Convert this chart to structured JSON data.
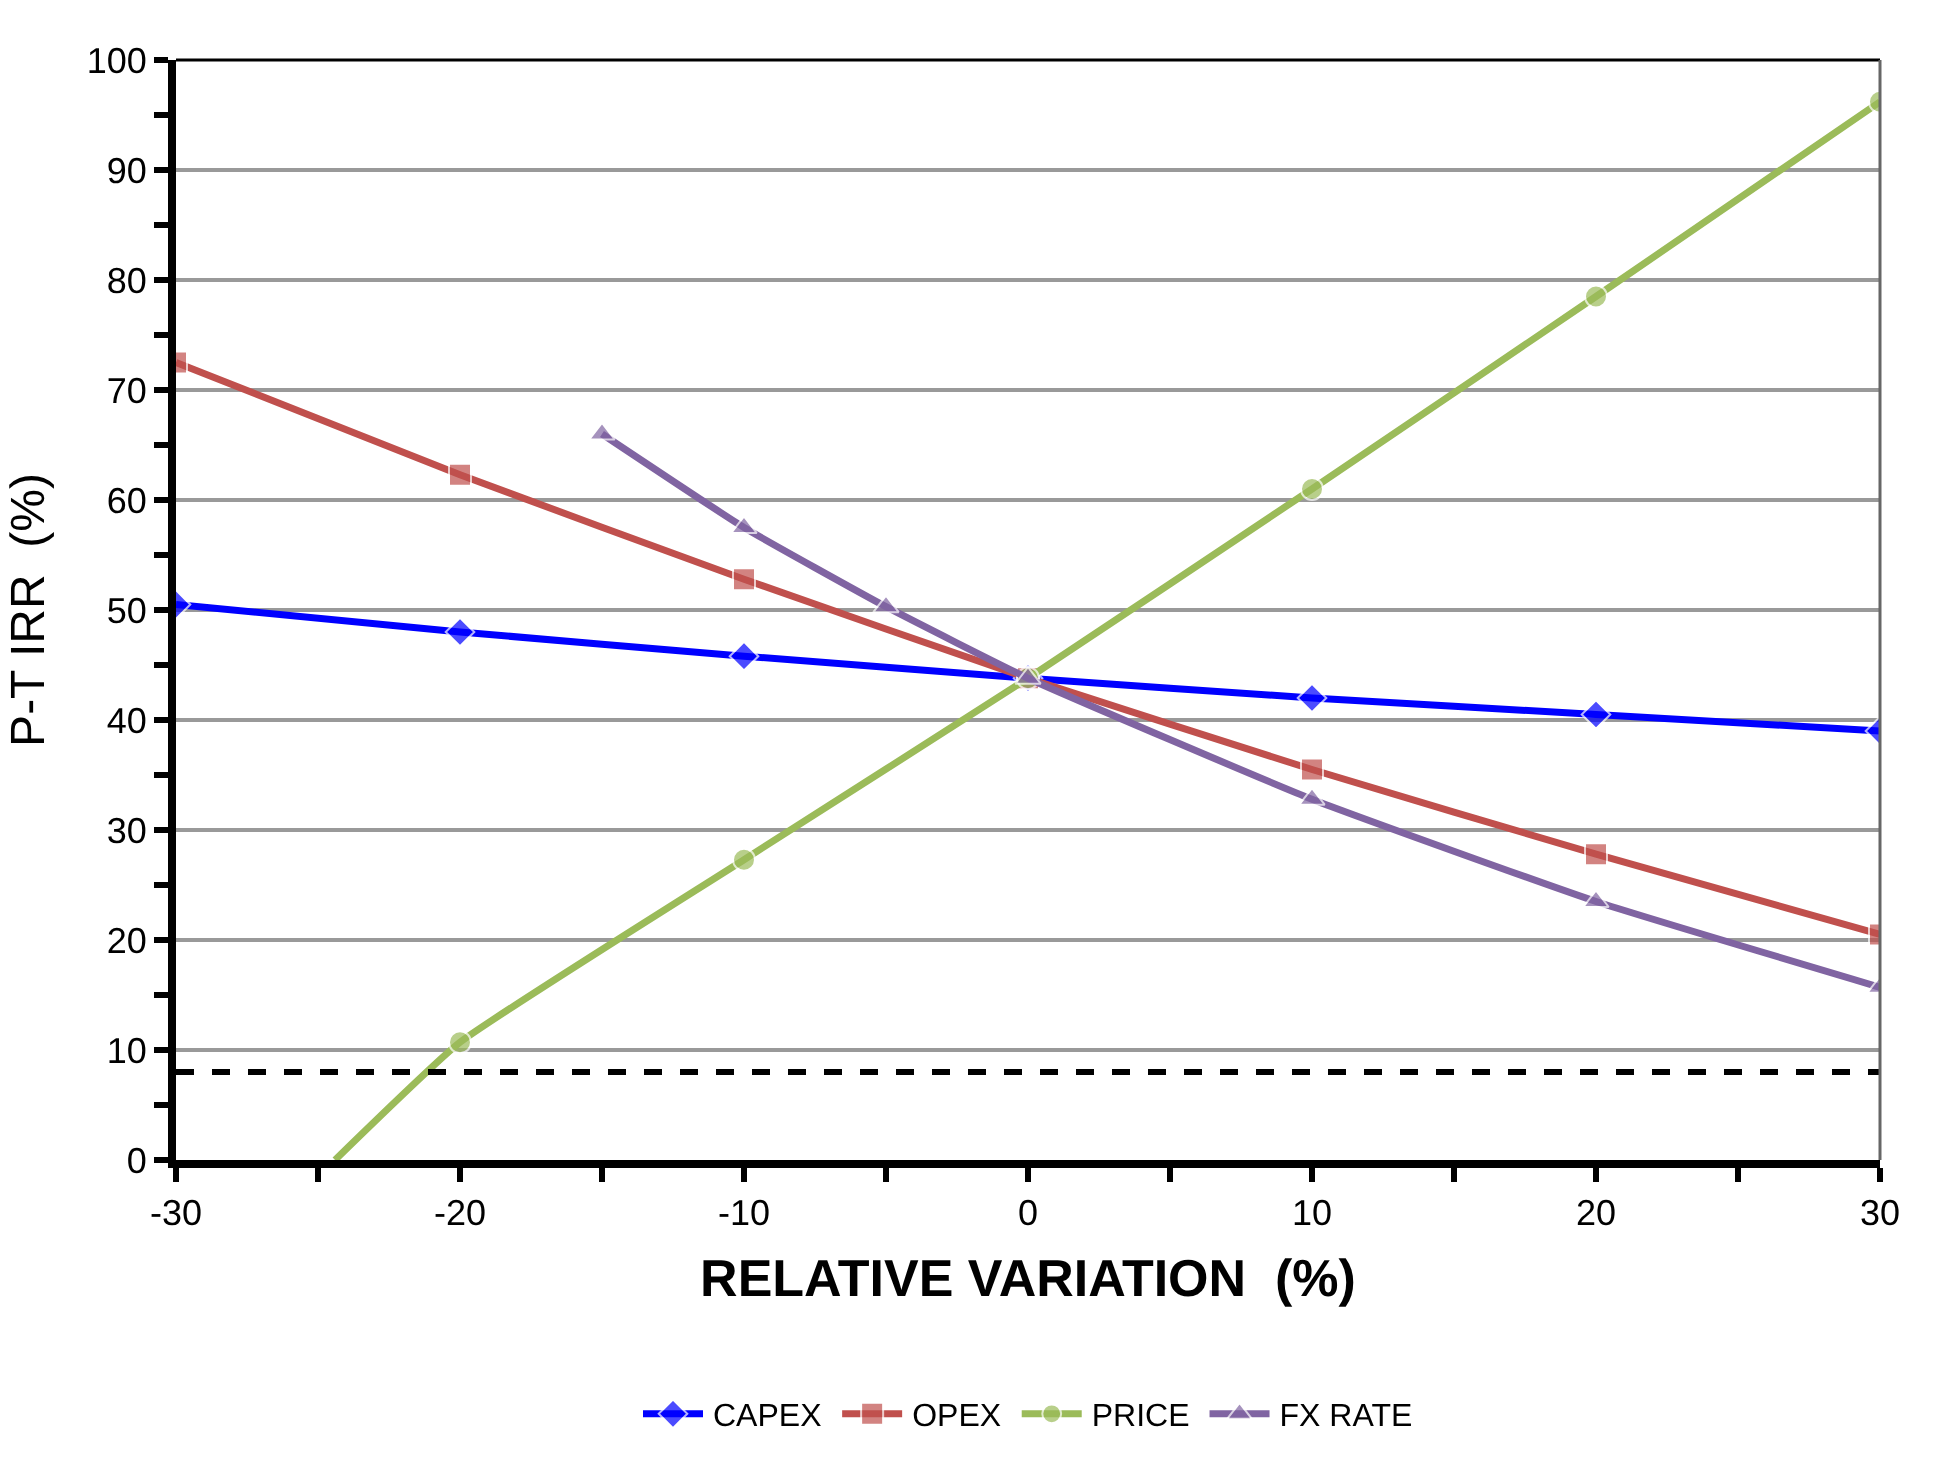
{
  "chart_data": {
    "type": "line",
    "xlabel": "RELATIVE VARIATION  (%)",
    "ylabel": "P-T IRR  (%)",
    "x": [
      -30,
      -20,
      -10,
      0,
      10,
      20,
      30
    ],
    "series": [
      {
        "name": "CAPEX",
        "color": "#0000ff",
        "marker": "diamond",
        "values": [
          50.5,
          48,
          45.8,
          43.8,
          42,
          40.5,
          39
        ]
      },
      {
        "name": "OPEX",
        "color": "#c0504d",
        "marker": "square",
        "values": [
          72.5,
          62.3,
          52.8,
          43.8,
          35.5,
          27.8,
          20.5
        ]
      },
      {
        "name": "PRICE",
        "color": "#9bbb59",
        "marker": "circle",
        "x": [
          -24.4,
          -20,
          -10,
          0,
          10,
          20,
          30
        ],
        "values": [
          0,
          10.7,
          27.3,
          43.8,
          61,
          78.5,
          96.2
        ]
      },
      {
        "name": "FX RATE",
        "color": "#8064a2",
        "marker": "triangle",
        "x": [
          -15,
          -10,
          -5,
          0,
          10,
          20,
          30
        ],
        "values": [
          66,
          57.5,
          50.3,
          43.8,
          32.8,
          23.5,
          15.7
        ]
      }
    ],
    "xlim": [
      -30,
      30
    ],
    "xticks": [
      -30,
      {
        "value": -25,
        "label": null
      },
      -20,
      {
        "value": -15,
        "label": null
      },
      -10,
      {
        "value": -5,
        "label": null
      },
      0,
      {
        "value": 5,
        "label": null
      },
      10,
      {
        "value": 15,
        "label": null
      },
      20,
      {
        "value": 25,
        "label": null
      },
      30
    ],
    "ylim": [
      0,
      100
    ],
    "yticks": [
      0,
      {
        "value": 5,
        "label": null
      },
      10,
      {
        "value": 15,
        "label": null
      },
      20,
      {
        "value": 25,
        "label": null
      },
      30,
      {
        "value": 35,
        "label": null
      },
      40,
      {
        "value": 45,
        "label": null
      },
      50,
      {
        "value": 55,
        "label": null
      },
      60,
      {
        "value": 65,
        "label": null
      },
      70,
      {
        "value": 75,
        "label": null
      },
      80,
      {
        "value": 85,
        "label": null
      },
      90,
      {
        "value": 95,
        "label": null
      },
      100
    ],
    "ref_lines": [
      {
        "axis": "y",
        "value": 8,
        "color": "#000000",
        "line_style": "dashed"
      }
    ],
    "grid": "y",
    "legend": "bottom",
    "line_style": "solid"
  }
}
